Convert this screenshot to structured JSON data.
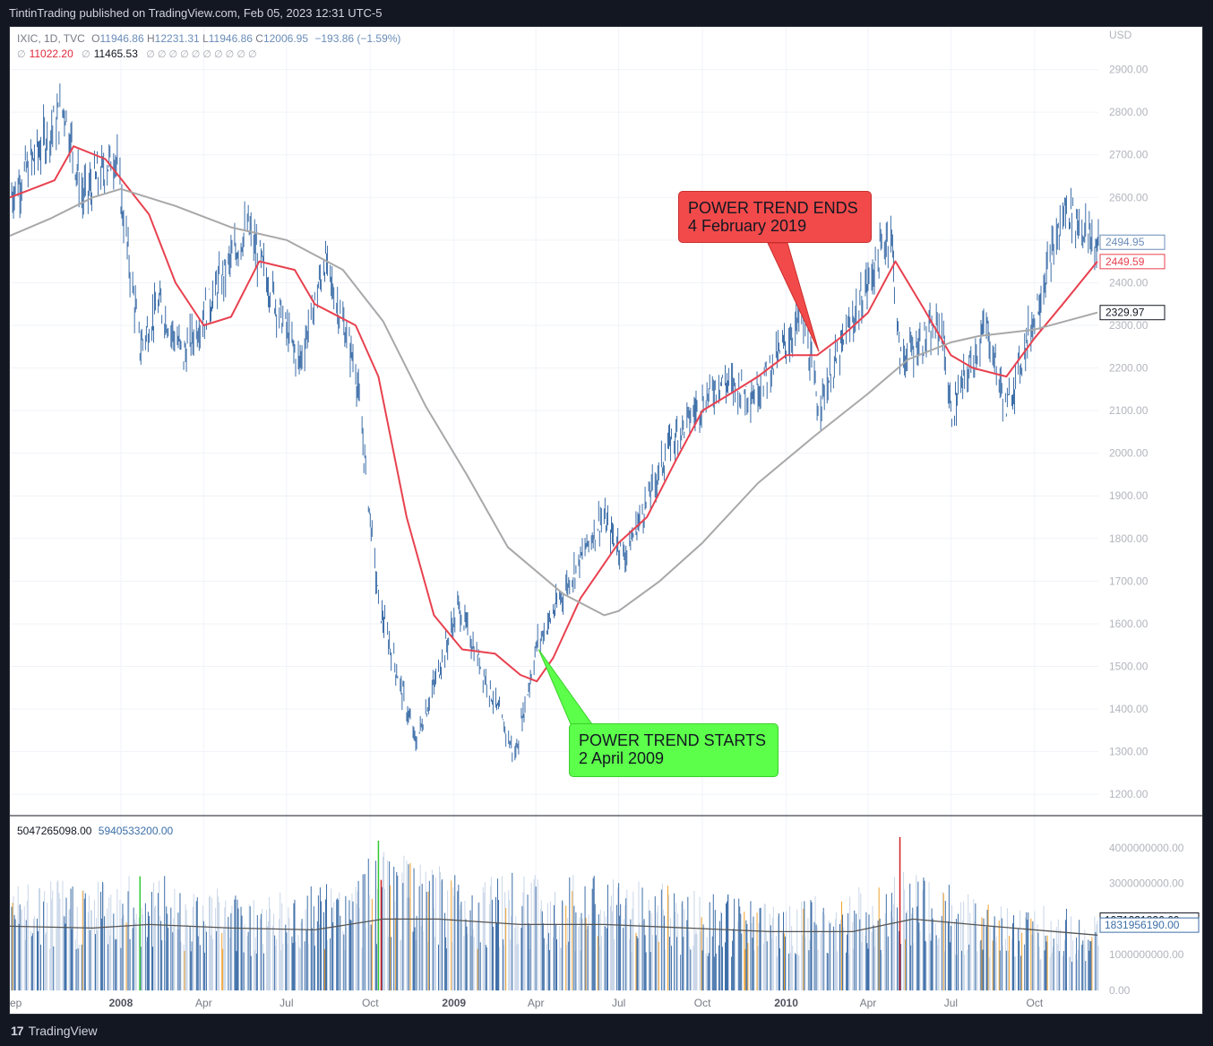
{
  "header": {
    "published_by": "TintinTrading published on TradingView.com, Feb 05, 2023 12:31 UTC-5"
  },
  "legend": {
    "symbol": "IXIC, 1D, TVC",
    "open_label": "O",
    "open": "11946.86",
    "high_label": "H",
    "high": "12231.31",
    "low_label": "L",
    "low": "11946.86",
    "close_label": "C",
    "close": "12006.95",
    "change": "−193.86 (−1.59%)",
    "ma_fast": "11022.20",
    "ma_slow": "11465.53",
    "ma_extra": "∅ ∅ ∅ ∅ ∅ ∅ ∅ ∅ ∅ ∅",
    "volume_1": "5047265098.00",
    "volume_2": "5940533200.00"
  },
  "callouts": {
    "end_title": "POWER TREND ENDS",
    "end_date": "4 February 2019",
    "start_title": "POWER TREND STARTS",
    "start_date": "2 April 2009"
  },
  "footer": {
    "brand": "TradingView",
    "logo_text": "17"
  },
  "colors": {
    "candle": "#3d6ea8",
    "ma_fast": "#e8414f",
    "ma_slow": "#a8a8a8",
    "volume_up": "#3d6ea8",
    "volume_orange": "#f0a02a",
    "volume_green": "#32c832",
    "volume_red": "#d42020",
    "callout_red": "#f24a4a",
    "callout_green": "#5cff4a"
  },
  "chart_data": [
    {
      "type": "candlestick",
      "title": "IXIC, 1D, TVC",
      "currency_label": "USD",
      "ylim": [
        1150,
        3000
      ],
      "y_ticks": [
        1200,
        1300,
        1400,
        1500,
        1600,
        1700,
        1800,
        1900,
        2000,
        2100,
        2200,
        2300,
        2400,
        2500,
        2600,
        2700,
        2800,
        2900
      ],
      "y_tick_labels": [
        "1200.00",
        "1300.00",
        "1400.00",
        "1500.00",
        "1600.00",
        "1700.00",
        "1800.00",
        "1900.00",
        "2000.00",
        "2100.00",
        "2200.00",
        "2300.00",
        "2400.00",
        "2500.00",
        "2600.00",
        "2700.00",
        "2800.00",
        "2900.00"
      ],
      "x_tick_labels": [
        "ep",
        "2008",
        "Apr",
        "Jul",
        "Oct",
        "2009",
        "Apr",
        "Jul",
        "Oct",
        "2010",
        "Apr",
        "Jul",
        "Oct"
      ],
      "x_ticks": [
        "2007-09",
        "2008-01",
        "2008-04",
        "2008-07",
        "2008-10",
        "2009-01",
        "2009-04",
        "2009-07",
        "2009-10",
        "2010-01",
        "2010-04",
        "2010-07",
        "2010-10"
      ],
      "x_range": [
        "2007-09-01",
        "2010-12-10"
      ],
      "grid": true,
      "price_path": [
        [
          "2007-09-01",
          2600
        ],
        [
          "2007-10-31",
          2810
        ],
        [
          "2007-11-20",
          2600
        ],
        [
          "2007-12-26",
          2700
        ],
        [
          "2008-01-22",
          2250
        ],
        [
          "2008-02-12",
          2350
        ],
        [
          "2008-03-10",
          2230
        ],
        [
          "2008-05-19",
          2530
        ],
        [
          "2008-07-15",
          2210
        ],
        [
          "2008-08-12",
          2450
        ],
        [
          "2008-09-15",
          2200
        ],
        [
          "2008-10-10",
          1650
        ],
        [
          "2008-11-20",
          1320
        ],
        [
          "2009-01-06",
          1640
        ],
        [
          "2009-03-09",
          1290
        ],
        [
          "2009-04-02",
          1550
        ],
        [
          "2009-06-12",
          1850
        ],
        [
          "2009-07-08",
          1760
        ],
        [
          "2009-08-28",
          2030
        ],
        [
          "2009-10-20",
          2170
        ],
        [
          "2009-11-27",
          2140
        ],
        [
          "2010-01-19",
          2320
        ],
        [
          "2010-02-05",
          2110
        ],
        [
          "2010-04-26",
          2530
        ],
        [
          "2010-05-06",
          2220
        ],
        [
          "2010-06-21",
          2300
        ],
        [
          "2010-07-01",
          2090
        ],
        [
          "2010-08-09",
          2300
        ],
        [
          "2010-08-31",
          2100
        ],
        [
          "2010-11-05",
          2580
        ],
        [
          "2010-12-09",
          2480
        ]
      ],
      "series": [
        {
          "name": "11022.20",
          "values": [
            [
              "2007-09-01",
              2600
            ],
            [
              "2007-10-20",
              2640
            ],
            [
              "2007-11-10",
              2720
            ],
            [
              "2007-12-15",
              2690
            ],
            [
              "2008-02-01",
              2560
            ],
            [
              "2008-03-01",
              2400
            ],
            [
              "2008-04-01",
              2300
            ],
            [
              "2008-05-01",
              2320
            ],
            [
              "2008-06-01",
              2450
            ],
            [
              "2008-07-10",
              2430
            ],
            [
              "2008-08-01",
              2350
            ],
            [
              "2008-09-15",
              2300
            ],
            [
              "2008-10-10",
              2180
            ],
            [
              "2008-11-10",
              1850
            ],
            [
              "2008-12-10",
              1620
            ],
            [
              "2009-01-10",
              1540
            ],
            [
              "2009-02-15",
              1530
            ],
            [
              "2009-03-15",
              1480
            ],
            [
              "2009-04-02",
              1465
            ],
            [
              "2009-04-20",
              1520
            ],
            [
              "2009-05-20",
              1660
            ],
            [
              "2009-07-01",
              1790
            ],
            [
              "2009-08-01",
              1850
            ],
            [
              "2009-09-01",
              1980
            ],
            [
              "2009-10-01",
              2100
            ],
            [
              "2009-11-01",
              2140
            ],
            [
              "2009-12-01",
              2180
            ],
            [
              "2010-01-01",
              2230
            ],
            [
              "2010-02-04",
              2230
            ],
            [
              "2010-03-01",
              2270
            ],
            [
              "2010-04-01",
              2330
            ],
            [
              "2010-05-01",
              2450
            ],
            [
              "2010-06-01",
              2340
            ],
            [
              "2010-07-01",
              2230
            ],
            [
              "2010-07-25",
              2200
            ],
            [
              "2010-08-31",
              2180
            ],
            [
              "2010-10-01",
              2270
            ],
            [
              "2010-11-01",
              2350
            ],
            [
              "2010-12-09",
              2450
            ]
          ]
        },
        {
          "name": "11465.53",
          "values": [
            [
              "2007-09-01",
              2510
            ],
            [
              "2007-10-15",
              2550
            ],
            [
              "2007-12-01",
              2600
            ],
            [
              "2008-01-01",
              2620
            ],
            [
              "2008-03-01",
              2580
            ],
            [
              "2008-05-01",
              2530
            ],
            [
              "2008-07-01",
              2500
            ],
            [
              "2008-09-01",
              2430
            ],
            [
              "2008-10-15",
              2310
            ],
            [
              "2008-12-01",
              2110
            ],
            [
              "2009-01-15",
              1950
            ],
            [
              "2009-03-01",
              1780
            ],
            [
              "2009-05-01",
              1670
            ],
            [
              "2009-06-15",
              1620
            ],
            [
              "2009-07-01",
              1630
            ],
            [
              "2009-08-15",
              1700
            ],
            [
              "2009-10-01",
              1790
            ],
            [
              "2009-12-01",
              1930
            ],
            [
              "2010-02-01",
              2040
            ],
            [
              "2010-04-01",
              2140
            ],
            [
              "2010-05-15",
              2220
            ],
            [
              "2010-07-01",
              2260
            ],
            [
              "2010-08-01",
              2275
            ],
            [
              "2010-10-01",
              2290
            ],
            [
              "2010-12-09",
              2330
            ]
          ]
        }
      ],
      "price_labels": [
        {
          "name": "close",
          "value": 2494.95,
          "text": "2494.95"
        },
        {
          "name": "ma_fast",
          "value": 2449.59,
          "text": "2449.59"
        },
        {
          "name": "ma_slow",
          "value": 2329.97,
          "text": "2329.97"
        }
      ],
      "annotations": [
        {
          "text": "POWER TREND ENDS / 4 February 2019",
          "date": "2010-02-04",
          "value": 2230
        },
        {
          "text": "POWER TREND STARTS / 2 April 2009",
          "date": "2009-04-02",
          "value": 1540
        }
      ]
    },
    {
      "type": "bar",
      "title": "Volume",
      "ylim": [
        0,
        4600000000
      ],
      "y_ticks": [
        0,
        1000000000,
        2000000000,
        3000000000,
        4000000000
      ],
      "y_tick_labels": [
        "0.00",
        "1000000000.00",
        "2000000000.00",
        "3000000000.00",
        "4000000000.00"
      ],
      "volume_profile": [
        [
          "2007-09-01",
          2.2
        ],
        [
          "2007-12-01",
          2.4
        ],
        [
          "2008-03-01",
          2.4
        ],
        [
          "2008-06-01",
          2.0
        ],
        [
          "2008-09-01",
          2.3
        ],
        [
          "2008-10-15",
          3.0
        ],
        [
          "2008-12-01",
          2.6
        ],
        [
          "2009-03-01",
          2.5
        ],
        [
          "2009-06-01",
          2.4
        ],
        [
          "2009-09-01",
          2.2
        ],
        [
          "2009-12-01",
          1.9
        ],
        [
          "2010-03-01",
          2.0
        ],
        [
          "2010-05-10",
          2.5
        ],
        [
          "2010-08-01",
          2.0
        ],
        [
          "2010-12-09",
          1.6
        ]
      ],
      "highlight_bars": [
        {
          "date": "2008-01-22",
          "value": 3.2,
          "color": "green"
        },
        {
          "date": "2008-10-10",
          "value": 4.2,
          "color": "green"
        },
        {
          "date": "2008-10-13",
          "value": 3.1,
          "color": "red"
        },
        {
          "date": "2010-05-06",
          "value": 4.3,
          "color": "red"
        }
      ],
      "series": [
        {
          "name": "5047265098.00",
          "values": [
            [
              "2007-09-01",
              1.8
            ],
            [
              "2007-12-01",
              1.75
            ],
            [
              "2008-02-01",
              1.85
            ],
            [
              "2008-05-01",
              1.75
            ],
            [
              "2008-08-01",
              1.7
            ],
            [
              "2008-10-15",
              2.0
            ],
            [
              "2008-12-15",
              2.0
            ],
            [
              "2009-03-15",
              1.85
            ],
            [
              "2009-06-15",
              1.85
            ],
            [
              "2009-09-15",
              1.75
            ],
            [
              "2009-12-15",
              1.65
            ],
            [
              "2010-03-15",
              1.65
            ],
            [
              "2010-05-20",
              2.0
            ],
            [
              "2010-08-15",
              1.8
            ],
            [
              "2010-12-09",
              1.55
            ]
          ]
        }
      ],
      "price_labels": [
        {
          "name": "volume_ma",
          "value": 1971931826.6,
          "text": "1971931826.60"
        },
        {
          "name": "volume_last",
          "value": 1831956190.0,
          "text": "1831956190.00"
        }
      ]
    }
  ]
}
